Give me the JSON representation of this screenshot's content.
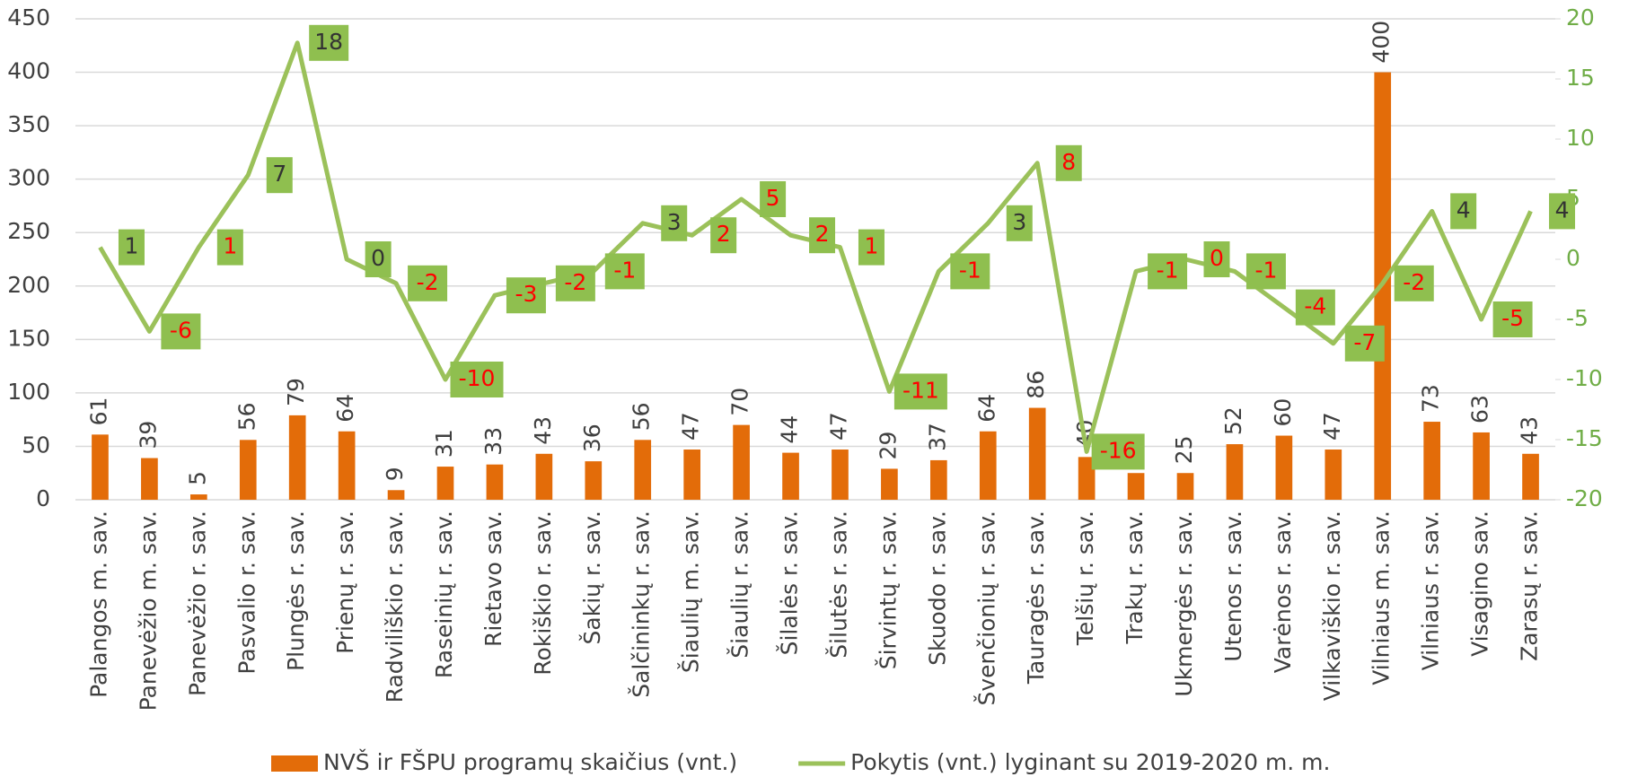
{
  "chart_data": {
    "type": "bar_line",
    "categories": [
      "Palangos m. sav.",
      "Panevėžio m. sav.",
      "Panevėžio r. sav.",
      "Pasvalio r. sav.",
      "Plungės r. sav.",
      "Prienų r. sav.",
      "Radviliškio r. sav.",
      "Raseinių r. sav.",
      "Rietavo sav.",
      "Rokiškio r. sav.",
      "Šakių r. sav.",
      "Šalčininkų r. sav.",
      "Šiaulių m. sav.",
      "Šiaulių r. sav.",
      "Šilalės r. sav.",
      "Šilutės r. sav.",
      "Širvintų r. sav.",
      "Skuodo r. sav.",
      "Švenčionių r. sav.",
      "Tauragės r. sav.",
      "Telšių r. sav.",
      "Trakų r. sav.",
      "Ukmergės r. sav.",
      "Utenos r. sav.",
      "Varėnos r. sav.",
      "Vilkaviškio r. sav.",
      "Vilniaus m. sav.",
      "Vilniaus r. sav.",
      "Visagino sav.",
      "Zarasų r. sav."
    ],
    "series": [
      {
        "name": "NVŠ ir FŠPU programų skaičius (vnt.)",
        "type": "bar",
        "color": "#e36c09",
        "values": [
          61,
          39,
          5,
          56,
          79,
          64,
          9,
          31,
          33,
          43,
          36,
          56,
          47,
          70,
          44,
          47,
          29,
          37,
          64,
          86,
          40,
          25,
          25,
          52,
          60,
          47,
          400,
          73,
          63,
          43
        ]
      },
      {
        "name": "Pokytis (vnt.) lyginant su 2019-2020 m. m.",
        "type": "line",
        "axis": "y2",
        "color": "#9bc15a",
        "label_box_color": "#8fbf4f",
        "values": [
          1,
          -6,
          1,
          7,
          18,
          0,
          -2,
          -10,
          -3,
          -2,
          -1,
          3,
          2,
          5,
          2,
          1,
          -11,
          -1,
          3,
          8,
          -16,
          -1,
          0,
          -1,
          -4,
          -7,
          -2,
          4,
          -5,
          4
        ],
        "label_colors": [
          "#333333",
          "#ff0000",
          "#ff0000",
          "#333333",
          "#333333",
          "#333333",
          "#ff0000",
          "#ff0000",
          "#ff0000",
          "#ff0000",
          "#ff0000",
          "#333333",
          "#ff0000",
          "#ff0000",
          "#ff0000",
          "#ff0000",
          "#ff0000",
          "#ff0000",
          "#333333",
          "#ff0000",
          "#ff0000",
          "#ff0000",
          "#ff0000",
          "#ff0000",
          "#ff0000",
          "#ff0000",
          "#ff0000",
          "#333333",
          "#ff0000",
          "#333333"
        ]
      }
    ],
    "ylim": [
      0,
      450
    ],
    "yticks": [
      0,
      50,
      100,
      150,
      200,
      250,
      300,
      350,
      400,
      450
    ],
    "y2lim": [
      -20,
      20
    ],
    "y2ticks": [
      -20,
      -15,
      -10,
      -5,
      0,
      5,
      10,
      15,
      20
    ],
    "y2_color": "#70ad47",
    "grid": true,
    "legend": "bottom"
  }
}
